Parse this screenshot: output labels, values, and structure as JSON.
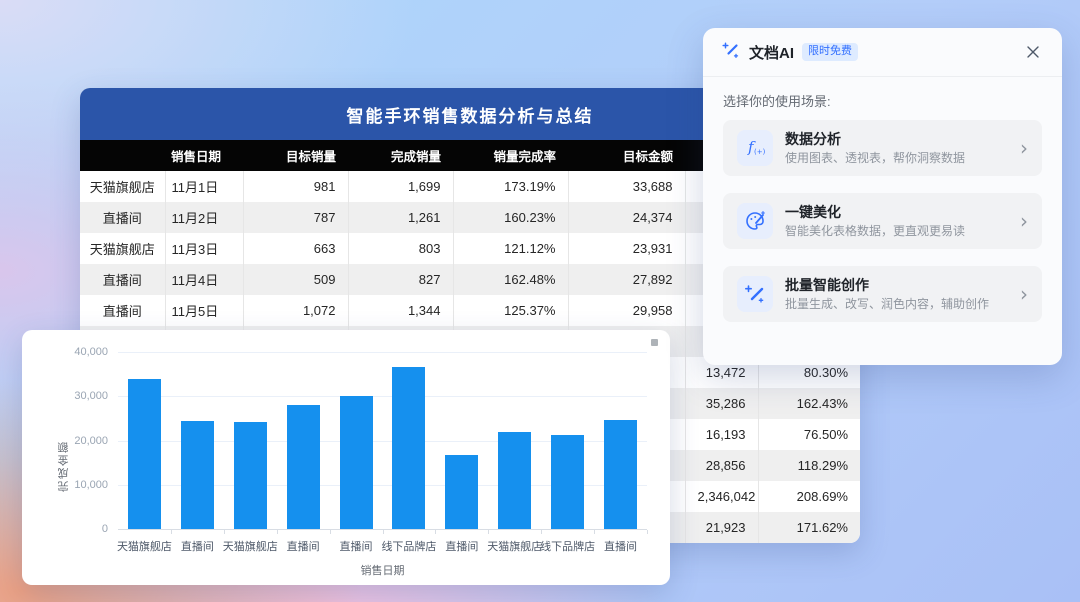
{
  "colors": {
    "accent_blue": "#3370FF",
    "bar_blue": "#1590EE",
    "banner_blue": "#2B55A9",
    "header_black": "#050505"
  },
  "table": {
    "title": "智能手环销售数据分析与总结",
    "headers": [
      "",
      "销售日期",
      "目标销量",
      "完成销量",
      "销量完成率",
      "目标金额",
      "",
      ""
    ],
    "rows": [
      [
        "天猫旗舰店",
        "11月1日",
        "981",
        "1,699",
        "173.19%",
        "33,688",
        "",
        ""
      ],
      [
        "直播间",
        "11月2日",
        "787",
        "1,261",
        "160.23%",
        "24,374",
        "",
        ""
      ],
      [
        "天猫旗舰店",
        "11月3日",
        "663",
        "803",
        "121.12%",
        "23,931",
        "",
        ""
      ],
      [
        "直播间",
        "11月4日",
        "509",
        "827",
        "162.48%",
        "27,892",
        "",
        ""
      ],
      [
        "直播间",
        "11月5日",
        "1,072",
        "1,344",
        "125.37%",
        "29,958",
        "",
        ""
      ],
      [
        "",
        "",
        "",
        "",
        "",
        "",
        "",
        ""
      ],
      [
        "",
        "",
        "",
        "",
        "",
        "",
        "13,472",
        "80.30%"
      ],
      [
        "",
        "",
        "",
        "",
        "",
        "",
        "35,286",
        "162.43%"
      ],
      [
        "",
        "",
        "",
        "",
        "",
        "",
        "16,193",
        "76.50%"
      ],
      [
        "",
        "",
        "",
        "",
        "",
        "",
        "28,856",
        "118.29%"
      ],
      [
        "",
        "",
        "",
        "",
        "",
        "",
        "2,346,042",
        "208.69%"
      ],
      [
        "",
        "",
        "",
        "",
        "",
        "",
        "21,923",
        "171.62%"
      ]
    ]
  },
  "chart_data": {
    "type": "bar",
    "title": "",
    "xlabel": "销售日期",
    "ylabel": "完成金额",
    "categories": [
      "天猫旗舰店",
      "直播间",
      "天猫旗舰店",
      "直播间",
      "直播间",
      "线下品牌店",
      "直播间",
      "天猫旗舰店",
      "线下品牌店",
      "直播间"
    ],
    "values": [
      33800,
      24500,
      24100,
      28000,
      30100,
      36500,
      16800,
      21900,
      21200,
      24600
    ],
    "ylim": [
      0,
      40000
    ],
    "ytick_values": [
      0,
      10000,
      20000,
      30000,
      40000
    ],
    "ytick_labels": [
      "0",
      "10,000",
      "20,000",
      "30,000",
      "40,000"
    ],
    "grid": true,
    "legend": "none",
    "bar_color": "#1590EE"
  },
  "panel": {
    "title": "文档AI",
    "badge": "限时免费",
    "section_label": "选择你的使用场景:",
    "cards": [
      {
        "icon": "fx-formula-icon",
        "title": "数据分析",
        "desc": "使用图表、透视表，帮你洞察数据",
        "chevron": "›"
      },
      {
        "icon": "palette-pen-icon",
        "title": "一键美化",
        "desc": "智能美化表格数据，更直观更易读",
        "chevron": "›"
      },
      {
        "icon": "magic-wand-icon",
        "title": "批量智能创作",
        "desc": "批量生成、改写、润色内容，辅助创作",
        "chevron": "›"
      }
    ]
  }
}
